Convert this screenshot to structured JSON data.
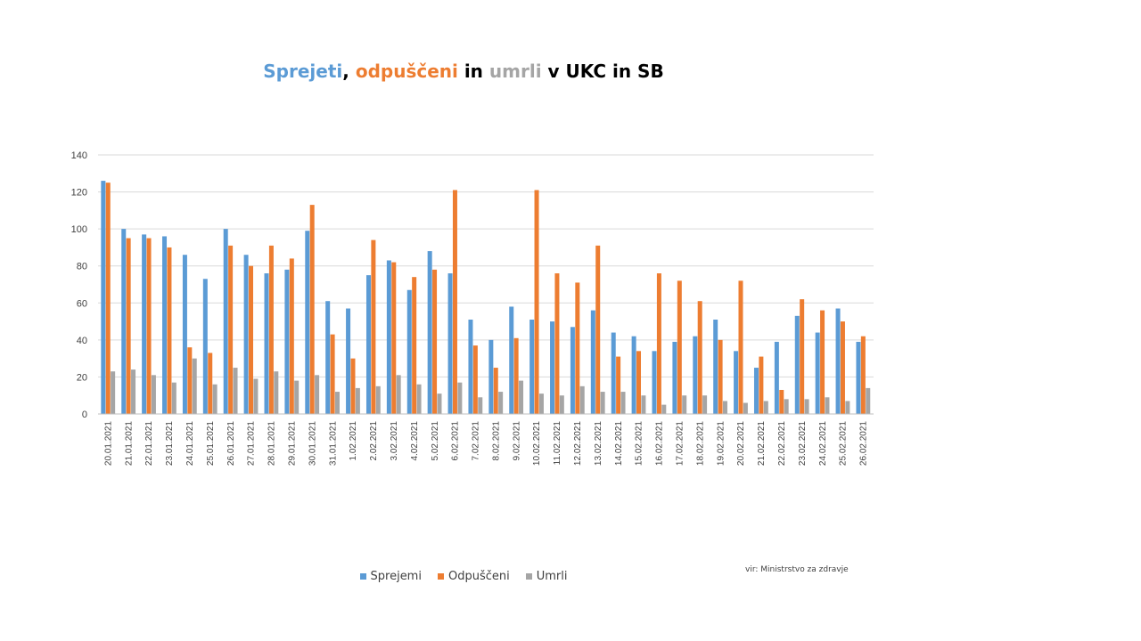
{
  "title": {
    "parts": [
      {
        "text": "Sprejeti",
        "color": "#5B9BD5"
      },
      {
        "text": ", ",
        "color": "#000000"
      },
      {
        "text": "odpuščeni",
        "color": "#ED7D31"
      },
      {
        "text": " in ",
        "color": "#000000"
      },
      {
        "text": "umrli",
        "color": "#A5A5A5"
      },
      {
        "text": " v UKC in SB",
        "color": "#000000"
      }
    ]
  },
  "source_note": "vir: Ministrstvo za zdravje",
  "chart_data": {
    "type": "bar",
    "title": "Sprejeti, odpuščeni in umrli v UKC in SB",
    "ylim": [
      0,
      140
    ],
    "yticks": [
      0,
      20,
      40,
      60,
      80,
      100,
      120,
      140
    ],
    "grid": true,
    "legend_position": "bottom",
    "categories": [
      "20.01.2021",
      "21.01.2021",
      "22.01.2021",
      "23.01.2021",
      "24.01.2021",
      "25.01.2021",
      "26.01.2021",
      "27.01.2021",
      "28.01.2021",
      "29.01.2021",
      "30.01.2021",
      "31.01.2021",
      "1.02.2021",
      "2.02.2021",
      "3.02.2021",
      "4.02.2021",
      "5.02.2021",
      "6.02.2021",
      "7.02.2021",
      "8.02.2021",
      "9.02.2021",
      "10.02.2021",
      "11.02.2021",
      "12.02.2021",
      "13.02.2021",
      "14.02.2021",
      "15.02.2021",
      "16.02.2021",
      "17.02.2021",
      "18.02.2021",
      "19.02.2021",
      "20.02.2021",
      "21.02.2021",
      "22.02.2021",
      "23.02.2021",
      "24.02.2021",
      "25.02.2021",
      "26.02.2021"
    ],
    "series": [
      {
        "name": "Sprejemi",
        "color": "#5B9BD5",
        "values": [
          126,
          100,
          97,
          96,
          86,
          73,
          100,
          86,
          76,
          78,
          99,
          61,
          57,
          75,
          83,
          67,
          88,
          76,
          51,
          40,
          58,
          51,
          50,
          47,
          56,
          44,
          42,
          34,
          39,
          42,
          51,
          34,
          25,
          39,
          53,
          44,
          57,
          39
        ]
      },
      {
        "name": "Odpuščeni",
        "color": "#ED7D31",
        "values": [
          125,
          95,
          95,
          90,
          36,
          33,
          91,
          80,
          91,
          84,
          113,
          43,
          30,
          94,
          82,
          74,
          78,
          121,
          37,
          25,
          41,
          121,
          76,
          71,
          91,
          31,
          34,
          76,
          72,
          61,
          40,
          72,
          31,
          13,
          62,
          56,
          50,
          42
        ]
      },
      {
        "name": "Umrli",
        "color": "#A5A5A5",
        "values": [
          23,
          24,
          21,
          17,
          30,
          16,
          25,
          19,
          23,
          18,
          21,
          12,
          14,
          15,
          21,
          16,
          11,
          17,
          9,
          12,
          18,
          11,
          10,
          15,
          12,
          12,
          10,
          5,
          10,
          10,
          7,
          6,
          7,
          8,
          8,
          9,
          7,
          14
        ]
      }
    ]
  }
}
